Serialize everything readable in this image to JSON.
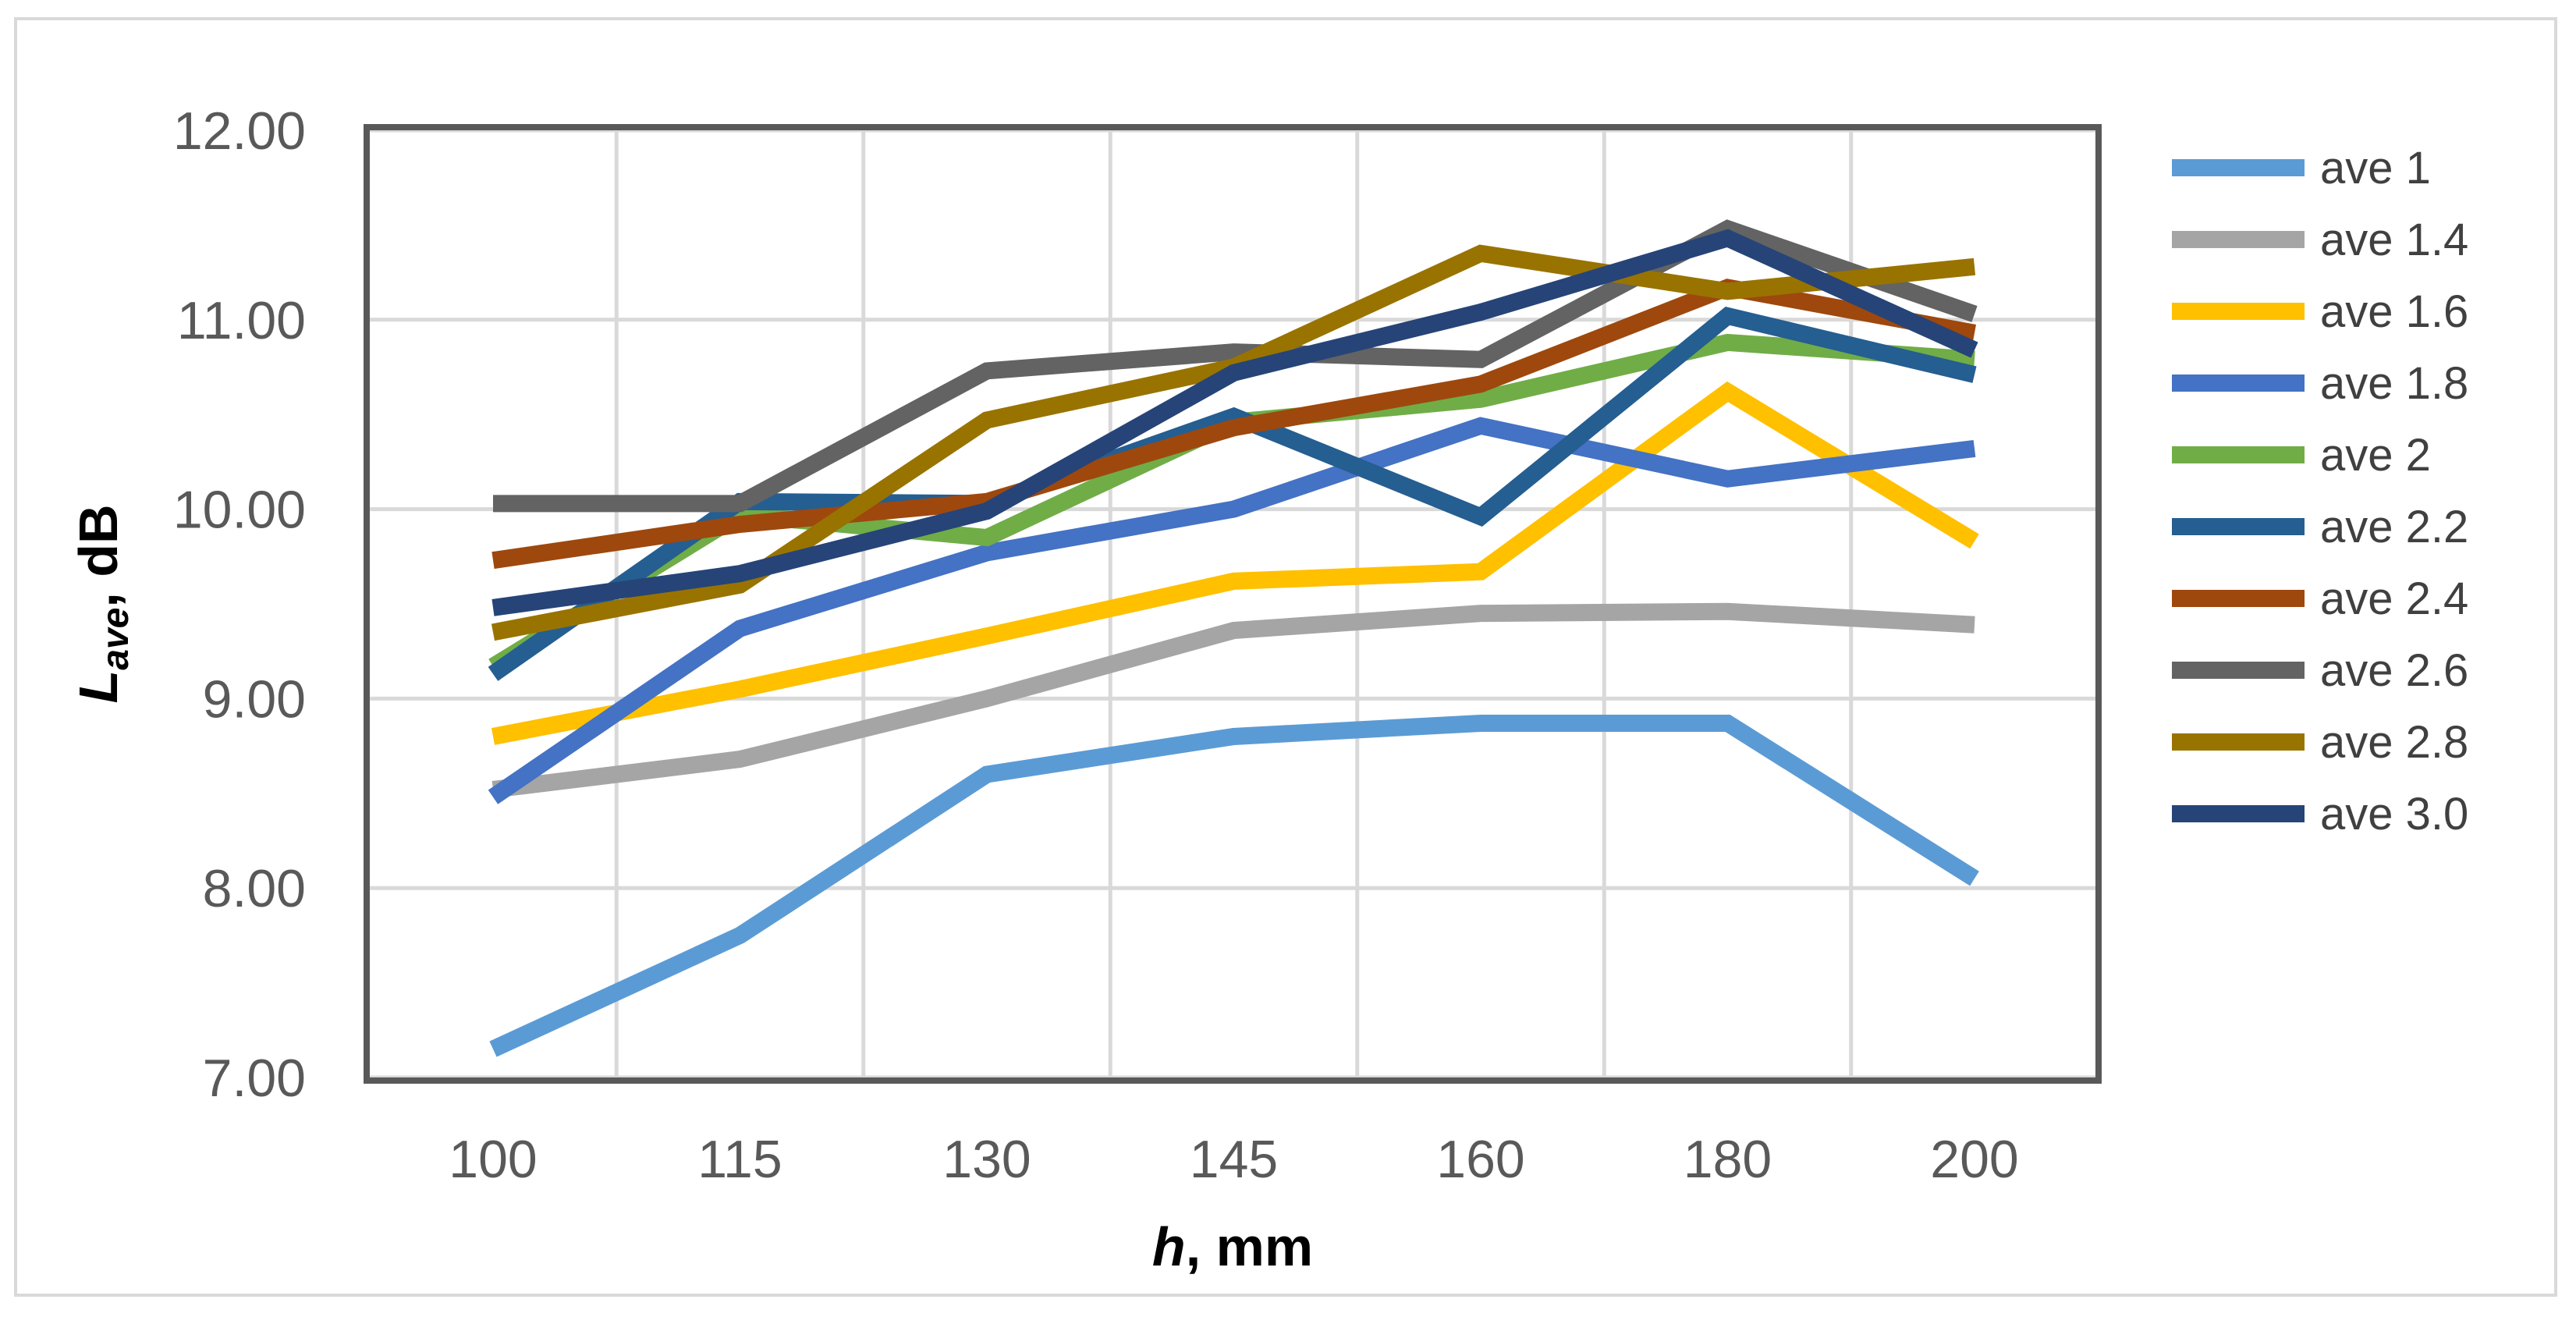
{
  "chart_data": {
    "type": "line",
    "title": "",
    "xlabel": {
      "main": "h",
      "rest": ", mm"
    },
    "ylabel": {
      "main": "L",
      "sub": "ave",
      "rest": ", dB"
    },
    "categories": [
      "100",
      "115",
      "130",
      "145",
      "160",
      "180",
      "200"
    ],
    "ylim": [
      7.0,
      12.0
    ],
    "yticks": [
      "7.00",
      "8.00",
      "9.00",
      "10.00",
      "11.00",
      "12.00"
    ],
    "grid": true,
    "legend_position": "right",
    "series": [
      {
        "name": "ave 1",
        "color": "#5b9bd5",
        "values": [
          7.15,
          7.75,
          8.6,
          8.8,
          8.87,
          8.87,
          8.05
        ]
      },
      {
        "name": "ave 1.4",
        "color": "#a5a5a5",
        "values": [
          8.52,
          8.68,
          9.0,
          9.36,
          9.45,
          9.46,
          9.39
        ]
      },
      {
        "name": "ave 1.6",
        "color": "#ffc000",
        "values": [
          8.8,
          9.05,
          9.33,
          9.62,
          9.67,
          10.62,
          9.83
        ]
      },
      {
        "name": "ave 1.8",
        "color": "#4472c4",
        "values": [
          8.48,
          9.37,
          9.77,
          10.0,
          10.44,
          10.16,
          10.32
        ]
      },
      {
        "name": "ave 2",
        "color": "#70ad47",
        "values": [
          9.17,
          9.97,
          9.85,
          10.46,
          10.58,
          10.88,
          10.79
        ]
      },
      {
        "name": "ave 2.2",
        "color": "#255e91",
        "values": [
          9.13,
          10.04,
          10.03,
          10.49,
          9.96,
          11.02,
          10.71
        ]
      },
      {
        "name": "ave 2.4",
        "color": "#9e480e",
        "values": [
          9.73,
          9.92,
          10.04,
          10.43,
          10.66,
          11.17,
          10.93
        ]
      },
      {
        "name": "ave 2.6",
        "color": "#636363",
        "values": [
          10.03,
          10.03,
          10.73,
          10.83,
          10.79,
          11.48,
          11.03
        ]
      },
      {
        "name": "ave 2.8",
        "color": "#997300",
        "values": [
          9.35,
          9.6,
          10.47,
          10.75,
          11.35,
          11.15,
          11.28
        ]
      },
      {
        "name": "ave 3.0",
        "color": "#264478",
        "values": [
          9.48,
          9.66,
          9.99,
          10.72,
          11.04,
          11.43,
          10.84
        ]
      }
    ]
  }
}
